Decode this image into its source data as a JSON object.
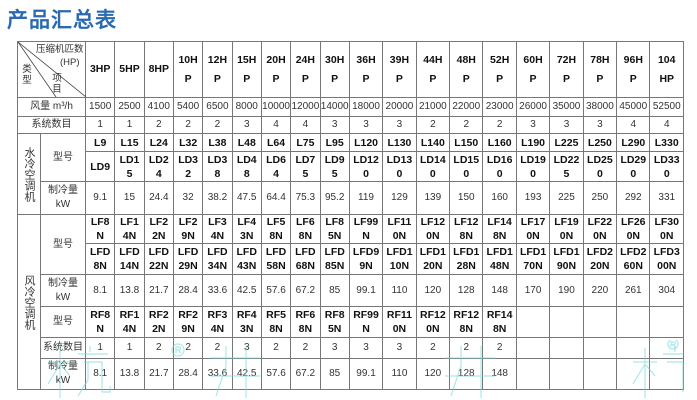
{
  "title": "产品汇总表",
  "header": {
    "corner_top": "压缩机匹数",
    "corner_unit": "(HP)",
    "corner_mid": "项目",
    "corner_left": "类型",
    "hp": [
      "3HP",
      "5HP",
      "8HP",
      "10HP",
      "12HP",
      "15HP",
      "20HP",
      "24HP",
      "30HP",
      "36HP",
      "39HP",
      "44HP",
      "48HP",
      "52HP",
      "60HP",
      "72HP",
      "78HP",
      "96HP",
      "104HP"
    ]
  },
  "airflow": {
    "label": "风量 m³/h",
    "values": [
      "1500",
      "2500",
      "4100",
      "5400",
      "6500",
      "8000",
      "10000",
      "12000",
      "14000",
      "18000",
      "20000",
      "21000",
      "22000",
      "23000",
      "26000",
      "35000",
      "38000",
      "45000",
      "52500"
    ]
  },
  "system_count": {
    "label": "系统数目",
    "values": [
      "1",
      "1",
      "2",
      "2",
      "2",
      "3",
      "4",
      "4",
      "3",
      "3",
      "3",
      "2",
      "2",
      "2",
      "3",
      "3",
      "3",
      "4",
      "4"
    ]
  },
  "water_cooled": {
    "label": "水冷空调机",
    "model_label": "型号",
    "models_l": [
      "L9",
      "L15",
      "L24",
      "L32",
      "L38",
      "L48",
      "L64",
      "L75",
      "L95",
      "L120",
      "L130",
      "L140",
      "L150",
      "L160",
      "L190",
      "L225",
      "L250",
      "L290",
      "L330"
    ],
    "models_ld": [
      "LD9",
      "LD15",
      "LD24",
      "LD32",
      "LD38",
      "LD48",
      "LD64",
      "LD75",
      "LD95",
      "LD120",
      "LD130",
      "LD140",
      "LD150",
      "LD160",
      "LD190",
      "LD225",
      "LD250",
      "LD290",
      "LD330"
    ],
    "capacity_label": "制冷量",
    "capacity_unit": "kW",
    "capacity": [
      "9.1",
      "15",
      "24.4",
      "32",
      "38.2",
      "47.5",
      "64.4",
      "75.3",
      "95.2",
      "119",
      "129",
      "139",
      "150",
      "160",
      "193",
      "225",
      "250",
      "292",
      "331"
    ]
  },
  "air_cooled": {
    "label": "风冷空调机",
    "model_label": "型号",
    "models_lf": [
      "LF8N",
      "LF14N",
      "LF22N",
      "LF29N",
      "LF34N",
      "LF43N",
      "LF58N",
      "LF68N",
      "LF85N",
      "LF99N",
      "LF110N",
      "LF120N",
      "LF128N",
      "LF148N",
      "LF170N",
      "LF190N",
      "LF220N",
      "LF260N",
      "LF300N"
    ],
    "models_lfd": [
      "LFD8N",
      "LFD14N",
      "LFD22N",
      "LFD29N",
      "LFD34N",
      "LFD43N",
      "LFD58N",
      "LFD68N",
      "LFD85N",
      "LFD99N",
      "LFD110N",
      "LFD120N",
      "LFD128N",
      "LFD148N",
      "LFD170N",
      "LFD190N",
      "LFD220N",
      "LFD260N",
      "LFD300N"
    ],
    "capacity_label": "制冷量",
    "capacity_unit": "kW",
    "capacity": [
      "8.1",
      "13.8",
      "21.7",
      "28.4",
      "33.6",
      "42.5",
      "57.6",
      "67.2",
      "85",
      "99.1",
      "110",
      "120",
      "128",
      "148",
      "170",
      "190",
      "220",
      "261",
      "304"
    ],
    "rf_model_label": "型号",
    "models_rf": [
      "RF8N",
      "RF14N",
      "RF22N",
      "RF29N",
      "RF34N",
      "RF43N",
      "RF58N",
      "RF68N",
      "RF85N",
      "RF99N",
      "RF110N",
      "RF120N",
      "RF128N",
      "RF148N",
      "",
      "",
      "",
      "",
      ""
    ],
    "rf_count_label": "系统数目",
    "rf_count": [
      "1",
      "1",
      "2",
      "2",
      "2",
      "3",
      "2",
      "2",
      "3",
      "3",
      "3",
      "2",
      "2",
      "2",
      "",
      "",
      "",
      "",
      ""
    ],
    "rf_capacity_label": "制冷量",
    "rf_capacity_unit": "kW",
    "rf_capacity": [
      "8.1",
      "13.8",
      "21.7",
      "28.4",
      "33.6",
      "42.5",
      "57.6",
      "67.2",
      "85",
      "99.1",
      "110",
      "120",
      "128",
      "148",
      "",
      "",
      "",
      "",
      ""
    ]
  },
  "watermark": {
    "text": "杭井",
    "mark": "®"
  },
  "colors": {
    "title": "#2b69b0",
    "border": "#777777",
    "watermark": "#78d7d7"
  }
}
